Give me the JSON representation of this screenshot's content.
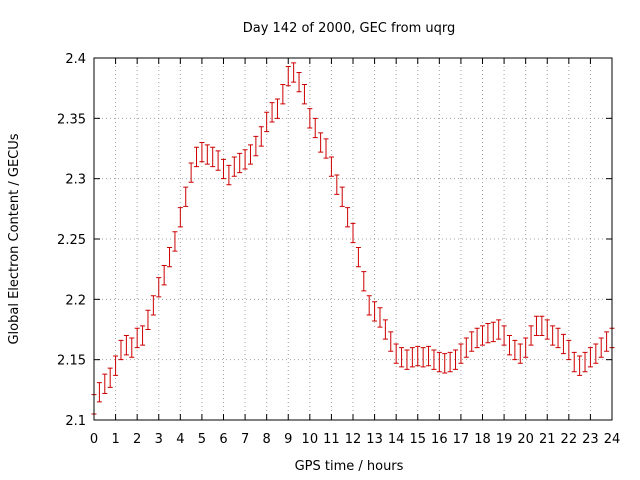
{
  "chart_data": {
    "type": "scatter",
    "title": "Day 142 of 2000, GEC from uqrg",
    "xlabel": "GPS time / hours",
    "ylabel": "Global Electron Content / GECUs",
    "xlim": [
      0,
      24
    ],
    "ylim": [
      2.1,
      2.4
    ],
    "x_ticks": [
      0,
      1,
      2,
      3,
      4,
      5,
      6,
      7,
      8,
      9,
      10,
      11,
      12,
      13,
      14,
      15,
      16,
      17,
      18,
      19,
      20,
      21,
      22,
      23,
      24
    ],
    "y_ticks": [
      "2.1",
      "2.15",
      "2.2",
      "2.25",
      "2.3",
      "2.35",
      "2.4"
    ],
    "grid": true,
    "error_bars": true,
    "series_color": "#cc0000",
    "error": 0.008,
    "x": [
      0.0,
      0.25,
      0.5,
      0.75,
      1.0,
      1.25,
      1.5,
      1.75,
      2.0,
      2.25,
      2.5,
      2.75,
      3.0,
      3.25,
      3.5,
      3.75,
      4.0,
      4.25,
      4.5,
      4.75,
      5.0,
      5.25,
      5.5,
      5.75,
      6.0,
      6.25,
      6.5,
      6.75,
      7.0,
      7.25,
      7.5,
      7.75,
      8.0,
      8.25,
      8.5,
      8.75,
      9.0,
      9.25,
      9.5,
      9.75,
      10.0,
      10.25,
      10.5,
      10.75,
      11.0,
      11.25,
      11.5,
      11.75,
      12.0,
      12.25,
      12.5,
      12.75,
      13.0,
      13.25,
      13.5,
      13.75,
      14.0,
      14.25,
      14.5,
      14.75,
      15.0,
      15.25,
      15.5,
      15.75,
      16.0,
      16.25,
      16.5,
      16.75,
      17.0,
      17.25,
      17.5,
      17.75,
      18.0,
      18.25,
      18.5,
      18.75,
      19.0,
      19.25,
      19.5,
      19.75,
      20.0,
      20.25,
      20.5,
      20.75,
      21.0,
      21.25,
      21.5,
      21.75,
      22.0,
      22.25,
      22.5,
      22.75,
      23.0,
      23.25,
      23.5,
      23.75,
      24.0
    ],
    "y": [
      2.113,
      2.123,
      2.13,
      2.135,
      2.145,
      2.158,
      2.162,
      2.16,
      2.168,
      2.17,
      2.183,
      2.195,
      2.21,
      2.22,
      2.235,
      2.248,
      2.268,
      2.285,
      2.305,
      2.318,
      2.322,
      2.32,
      2.318,
      2.315,
      2.308,
      2.303,
      2.31,
      2.313,
      2.316,
      2.32,
      2.327,
      2.335,
      2.347,
      2.355,
      2.358,
      2.37,
      2.385,
      2.388,
      2.38,
      2.37,
      2.35,
      2.342,
      2.33,
      2.325,
      2.31,
      2.295,
      2.285,
      2.268,
      2.255,
      2.235,
      2.215,
      2.195,
      2.19,
      2.185,
      2.175,
      2.165,
      2.155,
      2.152,
      2.15,
      2.152,
      2.153,
      2.152,
      2.153,
      2.15,
      2.148,
      2.147,
      2.148,
      2.15,
      2.155,
      2.16,
      2.165,
      2.168,
      2.17,
      2.172,
      2.173,
      2.175,
      2.17,
      2.162,
      2.158,
      2.155,
      2.16,
      2.17,
      2.178,
      2.178,
      2.175,
      2.17,
      2.168,
      2.163,
      2.158,
      2.148,
      2.145,
      2.148,
      2.152,
      2.155,
      2.16,
      2.165,
      2.168
    ]
  }
}
